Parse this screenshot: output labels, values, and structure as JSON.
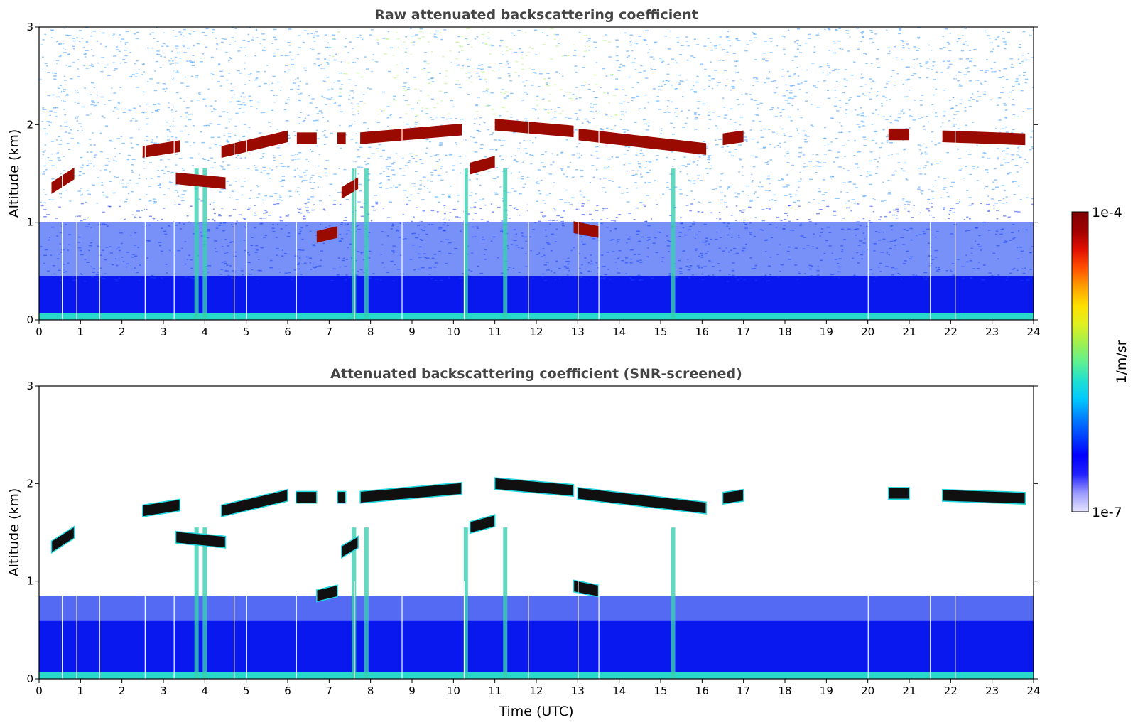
{
  "chart_data": [
    {
      "type": "heatmap",
      "title": "Raw attenuated backscattering coefficient",
      "xlabel": "",
      "ylabel": "Altitude (km)",
      "xlim": [
        0,
        24
      ],
      "ylim": [
        0,
        3
      ],
      "xticks": [
        "0",
        "1",
        "2",
        "3",
        "4",
        "5",
        "6",
        "7",
        "8",
        "9",
        "10",
        "11",
        "12",
        "13",
        "14",
        "15",
        "16",
        "17",
        "18",
        "19",
        "20",
        "21",
        "22",
        "23",
        "24"
      ],
      "yticks": [
        "0",
        "1",
        "2",
        "3"
      ],
      "noise_background": true,
      "cloud_layers": [
        {
          "t_start": 0.3,
          "t_end": 0.85,
          "alt_start": 1.35,
          "alt_end": 1.5
        },
        {
          "t_start": 2.5,
          "t_end": 3.4,
          "alt_start": 1.72,
          "alt_end": 1.78
        },
        {
          "t_start": 3.3,
          "t_end": 4.5,
          "alt_start": 1.45,
          "alt_end": 1.4
        },
        {
          "t_start": 4.4,
          "t_end": 6.0,
          "alt_start": 1.72,
          "alt_end": 1.88
        },
        {
          "t_start": 6.2,
          "t_end": 6.7,
          "alt_start": 1.86,
          "alt_end": 1.86
        },
        {
          "t_start": 6.7,
          "t_end": 7.2,
          "alt_start": 0.85,
          "alt_end": 0.9
        },
        {
          "t_start": 7.2,
          "t_end": 7.4,
          "alt_start": 1.86,
          "alt_end": 1.86
        },
        {
          "t_start": 7.3,
          "t_end": 7.7,
          "alt_start": 1.3,
          "alt_end": 1.4
        },
        {
          "t_start": 7.75,
          "t_end": 10.2,
          "alt_start": 1.86,
          "alt_end": 1.95
        },
        {
          "t_start": 10.4,
          "t_end": 11.0,
          "alt_start": 1.55,
          "alt_end": 1.62
        },
        {
          "t_start": 11.0,
          "t_end": 12.9,
          "alt_start": 2.0,
          "alt_end": 1.93
        },
        {
          "t_start": 12.9,
          "t_end": 13.5,
          "alt_start": 0.95,
          "alt_end": 0.9
        },
        {
          "t_start": 13.0,
          "t_end": 16.1,
          "alt_start": 1.9,
          "alt_end": 1.75
        },
        {
          "t_start": 16.5,
          "t_end": 17.0,
          "alt_start": 1.85,
          "alt_end": 1.88
        },
        {
          "t_start": 20.5,
          "t_end": 21.0,
          "alt_start": 1.9,
          "alt_end": 1.9
        },
        {
          "t_start": 21.8,
          "t_end": 23.8,
          "alt_start": 1.88,
          "alt_end": 1.85
        }
      ],
      "precipitation_streaks": [
        3.8,
        4.0,
        7.6,
        7.9,
        10.3,
        11.25,
        15.3
      ]
    },
    {
      "type": "heatmap",
      "title": "Attenuated backscattering coefficient (SNR-screened)",
      "xlabel": "Time (UTC)",
      "ylabel": "Altitude (km)",
      "xlim": [
        0,
        24
      ],
      "ylim": [
        0,
        3
      ],
      "xticks": [
        "0",
        "1",
        "2",
        "3",
        "4",
        "5",
        "6",
        "7",
        "8",
        "9",
        "10",
        "11",
        "12",
        "13",
        "14",
        "15",
        "16",
        "17",
        "18",
        "19",
        "20",
        "21",
        "22",
        "23",
        "24"
      ],
      "yticks": [
        "0",
        "1",
        "2",
        "3"
      ],
      "noise_background": false
    }
  ],
  "colorbar": {
    "label": "1/m/sr",
    "max_label": "1e-4",
    "min_label": "1e-7",
    "scale": "log",
    "range": [
      1e-07,
      0.0001
    ],
    "colormap": [
      "#e6e6ff",
      "#9a9aff",
      "#2020ff",
      "#0000ff",
      "#0040ff",
      "#0080ff",
      "#00c8ff",
      "#20e0d0",
      "#60f090",
      "#a0f050",
      "#e0f020",
      "#ffe000",
      "#ffa000",
      "#ff5000",
      "#e01000",
      "#a00000",
      "#800000"
    ]
  }
}
